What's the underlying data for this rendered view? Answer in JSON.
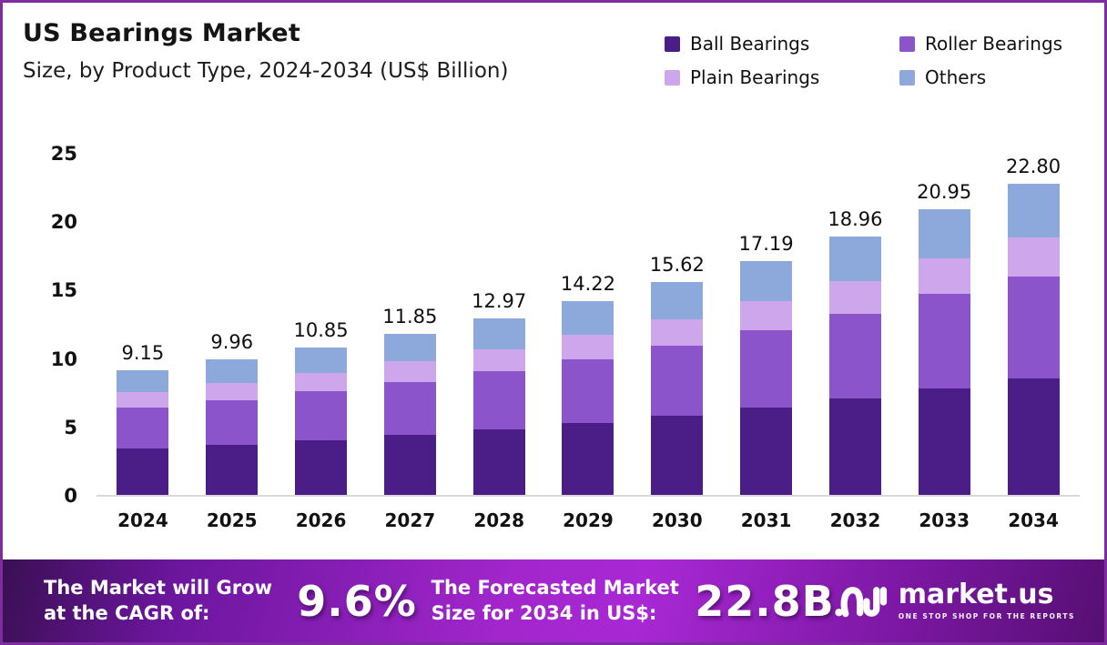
{
  "frame": {
    "border_color": "#7E2CA0"
  },
  "header": {
    "title": "US Bearings Market",
    "subtitle": "Size, by Product Type, 2024-2034 (US$ Billion)"
  },
  "legend": [
    {
      "label": "Ball Bearings",
      "color": "#4A1D87"
    },
    {
      "label": "Roller Bearings",
      "color": "#8C54CB"
    },
    {
      "label": "Plain Bearings",
      "color": "#CDA6EB"
    },
    {
      "label": "Others",
      "color": "#8DA9DC"
    }
  ],
  "chart_data": {
    "type": "bar",
    "stacked": true,
    "title": "US Bearings Market Size, by Product Type, 2024-2034 (US$ Billion)",
    "categories": [
      "2024",
      "2025",
      "2026",
      "2027",
      "2028",
      "2029",
      "2030",
      "2031",
      "2032",
      "2033",
      "2034"
    ],
    "series": [
      {
        "name": "Ball Bearings",
        "color": "#4A1D87",
        "values": [
          3.43,
          3.73,
          4.07,
          4.44,
          4.86,
          5.33,
          5.86,
          6.45,
          7.11,
          7.86,
          8.55
        ]
      },
      {
        "name": "Roller Bearings",
        "color": "#8C54CB",
        "values": [
          3.0,
          3.27,
          3.56,
          3.89,
          4.25,
          4.66,
          5.12,
          5.64,
          6.22,
          6.87,
          7.48
        ]
      },
      {
        "name": "Plain Bearings",
        "color": "#CDA6EB",
        "values": [
          1.15,
          1.25,
          1.36,
          1.48,
          1.63,
          1.78,
          1.95,
          2.15,
          2.37,
          2.62,
          2.85
        ]
      },
      {
        "name": "Others",
        "color": "#8DA9DC",
        "values": [
          1.57,
          1.71,
          1.86,
          2.04,
          2.23,
          2.45,
          2.69,
          2.95,
          3.26,
          3.6,
          3.92
        ]
      }
    ],
    "totals": [
      9.15,
      9.96,
      10.85,
      11.85,
      12.97,
      14.22,
      15.62,
      17.19,
      18.96,
      20.95,
      22.8
    ],
    "total_labels": [
      "9.15",
      "9.96",
      "10.85",
      "11.85",
      "12.97",
      "14.22",
      "15.62",
      "17.19",
      "18.96",
      "20.95",
      "22.80"
    ],
    "y_ticks": [
      0,
      5,
      10,
      15,
      20,
      25
    ],
    "ylim": [
      0,
      25
    ],
    "grid": false,
    "legend_position": "top-right",
    "xlabel": "",
    "ylabel": "US$ Billion"
  },
  "footer": {
    "cagr_line1": "The Market will Grow",
    "cagr_line2": "at the CAGR of:",
    "cagr_value": "9.6%",
    "forecast_line1": "The Forecasted Market",
    "forecast_line2": "Size for 2034 in US$:",
    "forecast_value": "22.8B",
    "brand": {
      "name": "market.us",
      "tagline": "ONE STOP SHOP FOR THE REPORTS"
    }
  }
}
